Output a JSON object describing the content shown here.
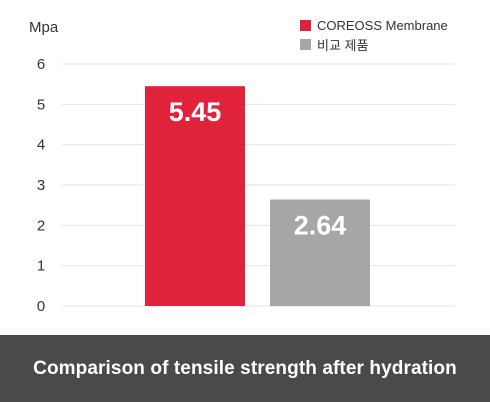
{
  "chart_data": {
    "type": "bar",
    "ylabel": "Mpa",
    "ylim": [
      0,
      6
    ],
    "yticks": [
      "0",
      "1",
      "2",
      "3",
      "4",
      "5",
      "6"
    ],
    "grid": true,
    "legend_position": "top-right",
    "series": [
      {
        "name": "COREOSS Membrane",
        "value": 5.45,
        "label": "5.45",
        "color": "#e0223a"
      },
      {
        "name": "비교 제품",
        "value": 2.64,
        "label": "2.64",
        "color": "#a6a6a8"
      }
    ]
  },
  "caption": "Comparison of tensile strength after hydration",
  "colors": {
    "caption_background": "#4a4a4c",
    "gridline": "#e6e6e6",
    "axis_text": "#333333"
  }
}
